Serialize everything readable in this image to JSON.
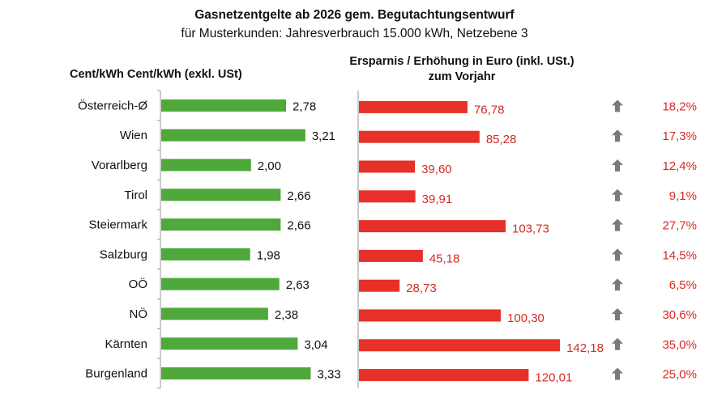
{
  "chart_data": [
    {
      "type": "bar",
      "orientation": "horizontal",
      "title": "Gasnetzentgelte ab 2026 gem. Begutachtungsentwurf",
      "subtitle": "für Musterkunden: Jahresverbrauch 15.000 kWh, Netzebene 3",
      "heading": "Cent/kWh Cent/kWh (exkl. USt)",
      "categories": [
        "Österreich-Ø",
        "Wien",
        "Vorarlberg",
        "Tirol",
        "Steiermark",
        "Salzburg",
        "OÖ",
        "NÖ",
        "Kärnten",
        "Burgenland"
      ],
      "values": [
        2.78,
        3.21,
        2.0,
        2.66,
        2.66,
        1.98,
        2.63,
        2.38,
        3.04,
        3.33
      ],
      "data_labels": [
        "2,78",
        "3,21",
        "2,00",
        "2,66",
        "2,66",
        "1,98",
        "2,63",
        "2,38",
        "3,04",
        "3,33"
      ],
      "color": "#4ea83a",
      "xlim": [
        0,
        4
      ],
      "grid": false
    },
    {
      "type": "bar",
      "orientation": "horizontal",
      "heading": "Ersparnis / Erhöhung in Euro (inkl. USt.) zum Vorjahr",
      "categories": [
        "Österreich-Ø",
        "Wien",
        "Vorarlberg",
        "Tirol",
        "Steiermark",
        "Salzburg",
        "OÖ",
        "NÖ",
        "Kärnten",
        "Burgenland"
      ],
      "values": [
        76.78,
        85.28,
        39.6,
        39.91,
        103.73,
        45.18,
        28.73,
        100.3,
        142.18,
        120.01
      ],
      "data_labels": [
        "76,78",
        "85,28",
        "39,60",
        "39,91",
        "103,73",
        "45,18",
        "28,73",
        "100,30",
        "142,18",
        "120,01"
      ],
      "change_percent_labels": [
        "18,2%",
        "17,3%",
        "12,4%",
        "9,1%",
        "27,7%",
        "14,5%",
        "6,5%",
        "30,6%",
        "35,0%",
        "25,0%"
      ],
      "change_icon": "arrow-up-icon",
      "color": "#e8302a",
      "label_color": "#d42a25",
      "icon_color": "#7a7a7a",
      "xlim": [
        0,
        180
      ],
      "grid": false
    }
  ]
}
